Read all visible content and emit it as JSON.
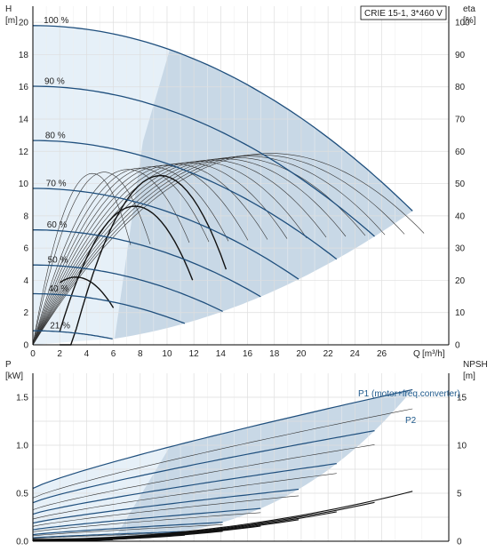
{
  "chart_data": [
    {
      "type": "line",
      "title": "CRIE 15-1, 3*460 V",
      "ylabel": "H",
      "yunit": "[m]",
      "y2label": "eta",
      "y2unit": "[%]",
      "xlabel": "Q",
      "xunit": "[m³/h]",
      "xlim": [
        0,
        31
      ],
      "ylim": [
        0,
        21
      ],
      "y2lim": [
        0,
        105
      ],
      "xticks": [
        0,
        2,
        4,
        6,
        8,
        10,
        12,
        14,
        16,
        18,
        20,
        22,
        24,
        26
      ],
      "yticks": [
        0,
        2,
        4,
        6,
        8,
        10,
        12,
        14,
        16,
        18,
        20
      ],
      "y2ticks": [
        0,
        10,
        20,
        30,
        40,
        50,
        60,
        70,
        80,
        90,
        100
      ],
      "grid": true,
      "head_curves": [
        {
          "label": "100 %",
          "speed": 1.0
        },
        {
          "label": "90 %",
          "speed": 0.9
        },
        {
          "label": "80 %",
          "speed": 0.8
        },
        {
          "label": "70 %",
          "speed": 0.7
        },
        {
          "label": "60 %",
          "speed": 0.6
        },
        {
          "label": "50 %",
          "speed": 0.5
        },
        {
          "label": "40 %",
          "speed": 0.4
        },
        {
          "label": "21 %",
          "speed": 0.21
        }
      ],
      "head_at_full_speed": {
        "h0": 19.8,
        "q_max": 28.3,
        "h_end": 8.3
      },
      "efficiency_peak_pct": 57,
      "efficiency_q_at_peak_full_speed": 17
    },
    {
      "type": "line",
      "ylabel": "P",
      "yunit": "[kW]",
      "y2label": "NPSH",
      "y2unit": "[m]",
      "xlim": [
        0,
        31
      ],
      "ylim": [
        0,
        1.75
      ],
      "y2lim": [
        0,
        17.5
      ],
      "yticks": [
        0.0,
        0.5,
        1.0,
        1.5
      ],
      "yticklabels": [
        "0.0",
        "0.5",
        "1.0",
        "1.5"
      ],
      "y2ticks": [
        0,
        5,
        10,
        15
      ],
      "grid": true,
      "series_labels": [
        "P1 (motor+freq.converter)",
        "P2"
      ],
      "power_at_full_speed": {
        "p1_at_q0": 0.55,
        "p1_at_qmax": 1.58,
        "p2_at_q0": 0.45,
        "p2_at_qmax": 1.38
      },
      "npsh_at_full_speed": {
        "q_start": 17.5,
        "at_q_start": 2.3,
        "at_qmax": 5.2
      }
    }
  ],
  "colors": {
    "envelope": "#c8d8e6",
    "envelope_light": "#e6f0f8",
    "grid": "#dedede",
    "head_curve": "#1f4f7d",
    "thin_curve": "#333333",
    "axis": "#000000"
  }
}
